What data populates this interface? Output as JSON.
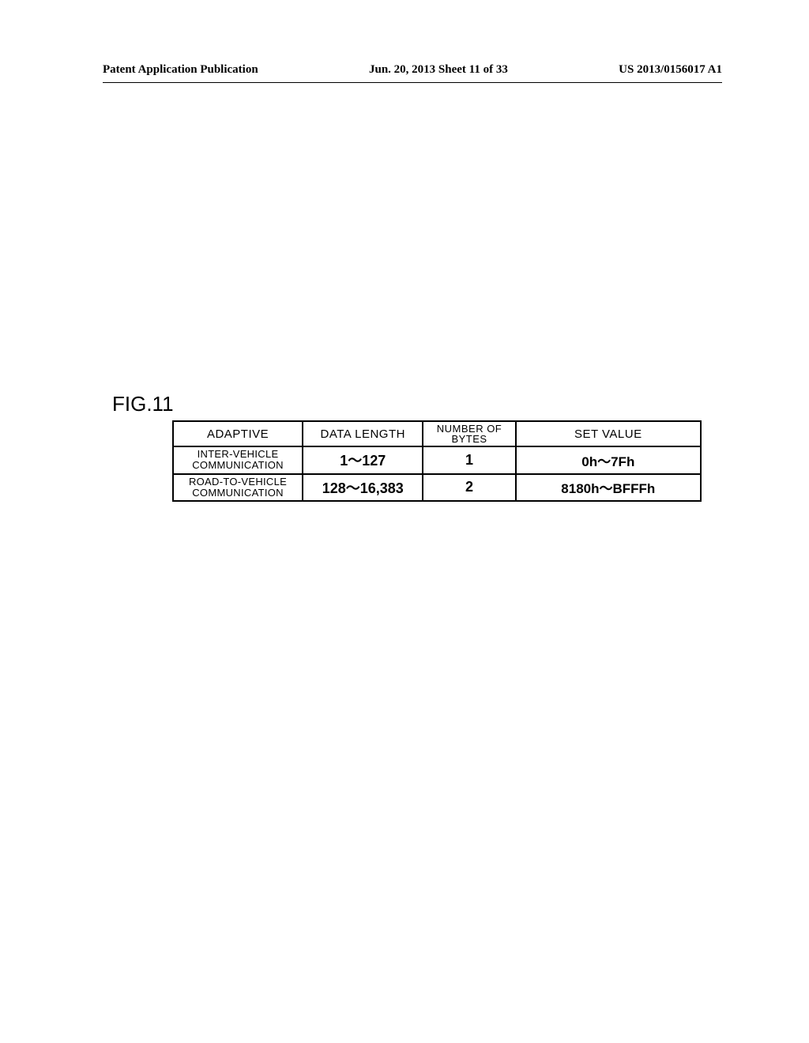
{
  "header": {
    "left": "Patent Application Publication",
    "center": "Jun. 20, 2013  Sheet 11 of 33",
    "right": "US 2013/0156017 A1"
  },
  "figure_label": "FIG.11",
  "table": {
    "columns": [
      "ADAPTIVE",
      "DATA LENGTH",
      "NUMBER OF\nBYTES",
      "SET VALUE"
    ],
    "rows": [
      {
        "adaptive": "INTER-VEHICLE\nCOMMUNICATION",
        "data_length": "1～127",
        "bytes": "1",
        "set_value": "0h～7Fh"
      },
      {
        "adaptive": "ROAD-TO-VEHICLE\nCOMMUNICATION",
        "data_length": "128～16,383",
        "bytes": "2",
        "set_value": "8180h～BFFFh"
      }
    ]
  }
}
